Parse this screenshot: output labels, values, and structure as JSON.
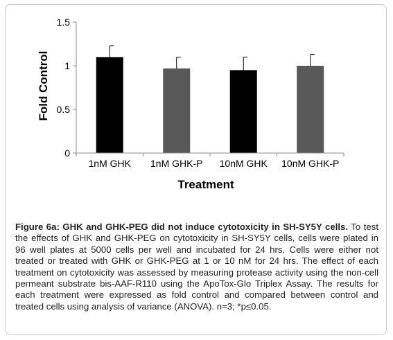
{
  "chart_data": {
    "type": "bar",
    "categories": [
      "1nM GHK",
      "1nM GHK-P",
      "10nM GHK",
      "10nM GHK-P"
    ],
    "values": [
      1.1,
      0.97,
      0.95,
      1.0
    ],
    "errors": [
      0.13,
      0.13,
      0.15,
      0.13
    ],
    "bar_colors": [
      "#000000",
      "#595959",
      "#000000",
      "#595959"
    ],
    "title": "",
    "xlabel": "Treatment",
    "ylabel": "Fold Control",
    "ylim": [
      0,
      1.5
    ],
    "yticks": [
      0,
      0.5,
      1,
      1.5
    ],
    "ytick_labels": [
      "0",
      "0.5",
      "1",
      "1.5"
    ],
    "grid": false,
    "legend": "none"
  },
  "caption": {
    "head": "Figure 6a: GHK and GHK-PEG did not induce cytotoxicity in SH-SY5Y cells.",
    "body": " To test the effects of GHK and GHK-PEG on cytotoxicity in SH-SY5Y cells, cells were plated in 96 well plates at 5000 cells per well and incubated for 24 hrs. Cells were either not treated or treated with GHK or GHK-PEG at 1 or 10 nM for 24 hrs. The effect of each treatment on cytotoxicity was assessed by measuring protease activity using the non-cell permeant substrate bis-AAF-R110 using the ApoTox-Glo Triplex Assay. The results for each treatment were expressed as fold control and compared between control and treated cells using analysis of variance (ANOVA). n=3; *p≤0.05."
  }
}
